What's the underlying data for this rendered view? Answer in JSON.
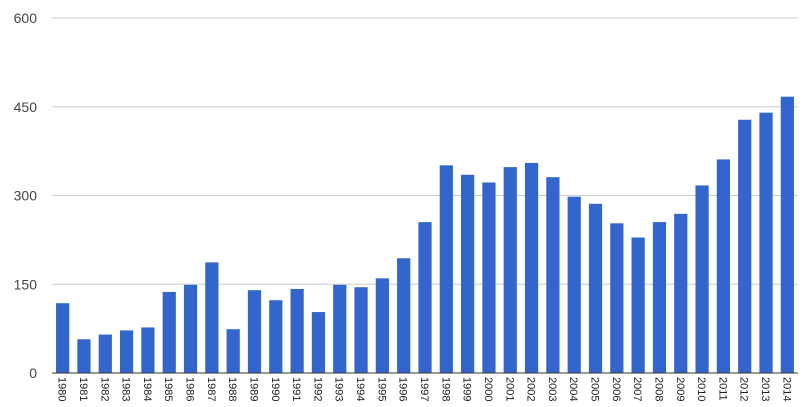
{
  "chart_data": {
    "type": "bar",
    "title": "",
    "xlabel": "",
    "ylabel": "",
    "bar_color": "#3366cc",
    "grid": true,
    "ylim": [
      0,
      600
    ],
    "yticks": [
      0,
      150,
      300,
      450,
      600
    ],
    "ytick_labels": [
      "0",
      "150",
      "300",
      "450",
      "600"
    ],
    "categories": [
      "1980",
      "1981",
      "1982",
      "1983",
      "1984",
      "1985",
      "1986",
      "1987",
      "1988",
      "1989",
      "1990",
      "1991",
      "1992",
      "1993",
      "1994",
      "1995",
      "1996",
      "1997",
      "1998",
      "1999",
      "2000",
      "2001",
      "2002",
      "2003",
      "2004",
      "2005",
      "2006",
      "2007",
      "2008",
      "2009",
      "2010",
      "2011",
      "2012",
      "2013",
      "2014"
    ],
    "values": [
      118,
      57,
      65,
      72,
      77,
      137,
      149,
      187,
      74,
      140,
      123,
      142,
      103,
      149,
      145,
      160,
      194,
      255,
      351,
      335,
      322,
      348,
      355,
      331,
      298,
      286,
      253,
      229,
      255,
      269,
      317,
      361,
      428,
      440,
      467
    ]
  }
}
